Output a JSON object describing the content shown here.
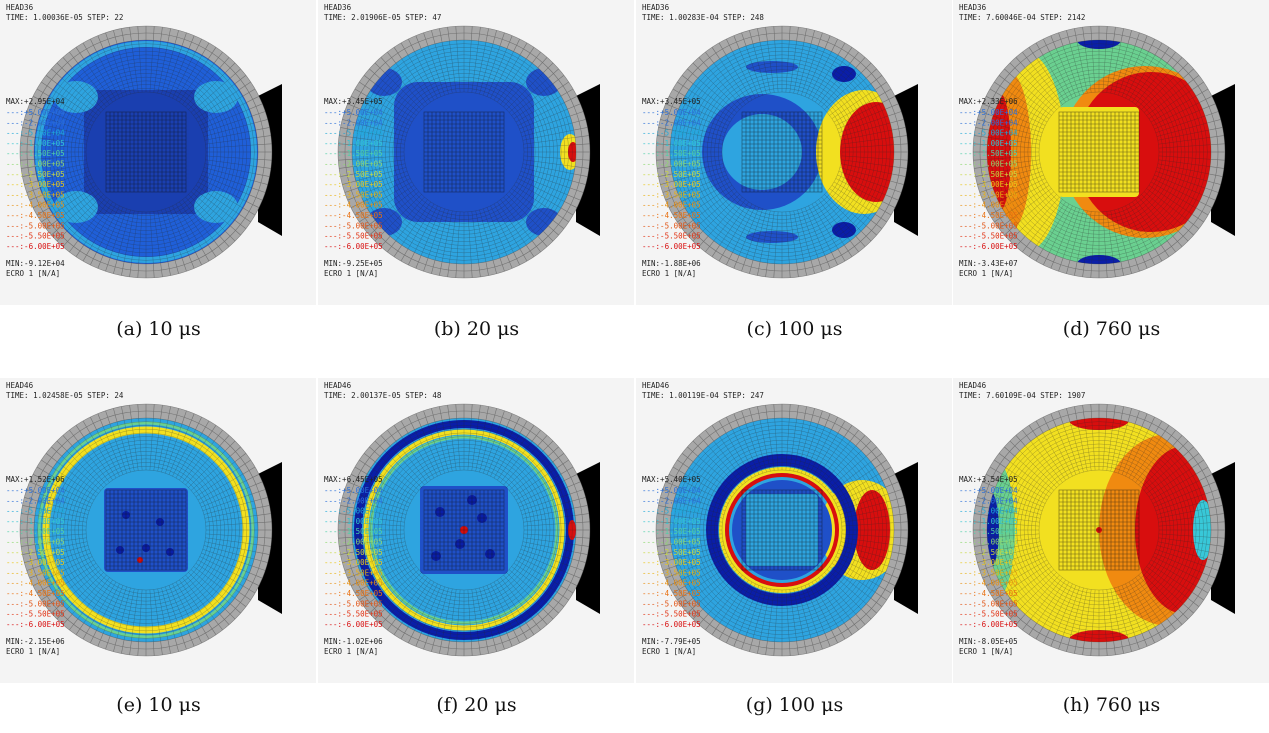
{
  "panels": [
    {
      "id": "a",
      "head": "HEAD36",
      "time": "TIME: 1.00036E-05",
      "step": "STEP: 22",
      "max": "MAX:+2.95E+04",
      "min": "MIN:-9.12E+04",
      "unit": "ECRO 1 [N/A]",
      "caption": "(a) 10 μs",
      "pattern": "s1_10"
    },
    {
      "id": "b",
      "head": "HEAD36",
      "time": "TIME: 2.01906E-05",
      "step": "STEP: 47",
      "max": "MAX:+3.45E+05",
      "min": "MIN:-9.25E+05",
      "unit": "ECRO 1 [N/A]",
      "caption": "(b) 20 μs",
      "pattern": "s1_20"
    },
    {
      "id": "c",
      "head": "HEAD36",
      "time": "TIME: 1.00283E-04",
      "step": "STEP: 248",
      "max": "MAX:+3.45E+05",
      "min": "MIN:-1.88E+06",
      "unit": "ECRO 1 [N/A]",
      "caption": "(c) 100 μs",
      "pattern": "s1_100"
    },
    {
      "id": "d",
      "head": "HEAD36",
      "time": "TIME: 7.60046E-04",
      "step": "STEP: 2142",
      "max": "MAX:+2.33E+06",
      "min": "MIN:-3.43E+07",
      "unit": "ECRO 1 [N/A]",
      "caption": "(d) 760 μs",
      "pattern": "s1_760"
    },
    {
      "id": "e",
      "head": "HEAD46",
      "time": "TIME: 1.02458E-05",
      "step": "STEP: 24",
      "max": "MAX:+1.52E+06",
      "min": "MIN:-2.15E+06",
      "unit": "ECRO 1 [N/A]",
      "caption": "(e) 10 μs",
      "pattern": "s2_10"
    },
    {
      "id": "f",
      "head": "HEAD46",
      "time": "TIME: 2.00137E-05",
      "step": "STEP: 48",
      "max": "MAX:+6.45E+05",
      "min": "MIN:-1.02E+06",
      "unit": "ECRO 1 [N/A]",
      "caption": "(f) 20 μs",
      "pattern": "s2_20"
    },
    {
      "id": "g",
      "head": "HEAD46",
      "time": "TIME: 1.00119E-04",
      "step": "STEP: 247",
      "max": "MAX:+5.40E+05",
      "min": "MIN:-7.79E+05",
      "unit": "ECRO 1 [N/A]",
      "caption": "(g) 100 μs",
      "pattern": "s2_100"
    },
    {
      "id": "h",
      "head": "HEAD46",
      "time": "TIME: 7.60109E-04",
      "step": "STEP: 1907",
      "max": "MAX:+3.54E+05",
      "min": "MIN:-8.05E+05",
      "unit": "ECRO 1 [N/A]",
      "caption": "(h) 760 μs",
      "pattern": "s2_760"
    }
  ],
  "legend": [
    {
      "text": "---:+5.00E+04",
      "color": "#2b6fd8"
    },
    {
      "text": "---:-2.00E+04",
      "color": "#2b6fd8"
    },
    {
      "text": "---:-5.00E+04",
      "color": "#1fa8d8"
    },
    {
      "text": "---:-1.00E+05",
      "color": "#33c4d0"
    },
    {
      "text": "---:-1.50E+05",
      "color": "#4fd0a8"
    },
    {
      "text": "---:-2.00E+05",
      "color": "#8fd870"
    },
    {
      "text": "---:-2.50E+05",
      "color": "#c8d840"
    },
    {
      "text": "---:-3.00E+05",
      "color": "#e8c81c"
    },
    {
      "text": "---:-3.50E+05",
      "color": "#e8b010"
    },
    {
      "text": "---:-4.00E+05",
      "color": "#e89010"
    },
    {
      "text": "---:-4.50E+05",
      "color": "#e87010"
    },
    {
      "text": "---:-5.00E+05",
      "color": "#e05010"
    },
    {
      "text": "---:-5.50E+05",
      "color": "#e03010"
    },
    {
      "text": "---:-6.00E+05",
      "color": "#d81010"
    }
  ],
  "colors": {
    "panel_bg": "#f4f4f4",
    "skull": "#a8a8a8",
    "mesh": "#2a2a2a",
    "impactor": "#000000",
    "dark_blue": "#0a1ea8",
    "blue": "#1f5fd8",
    "light_blue": "#2ea4e0",
    "cyan": "#38c8d8",
    "green": "#6ad090",
    "yellow": "#f2e020",
    "orange": "#f08a10",
    "red": "#d80e0e"
  }
}
